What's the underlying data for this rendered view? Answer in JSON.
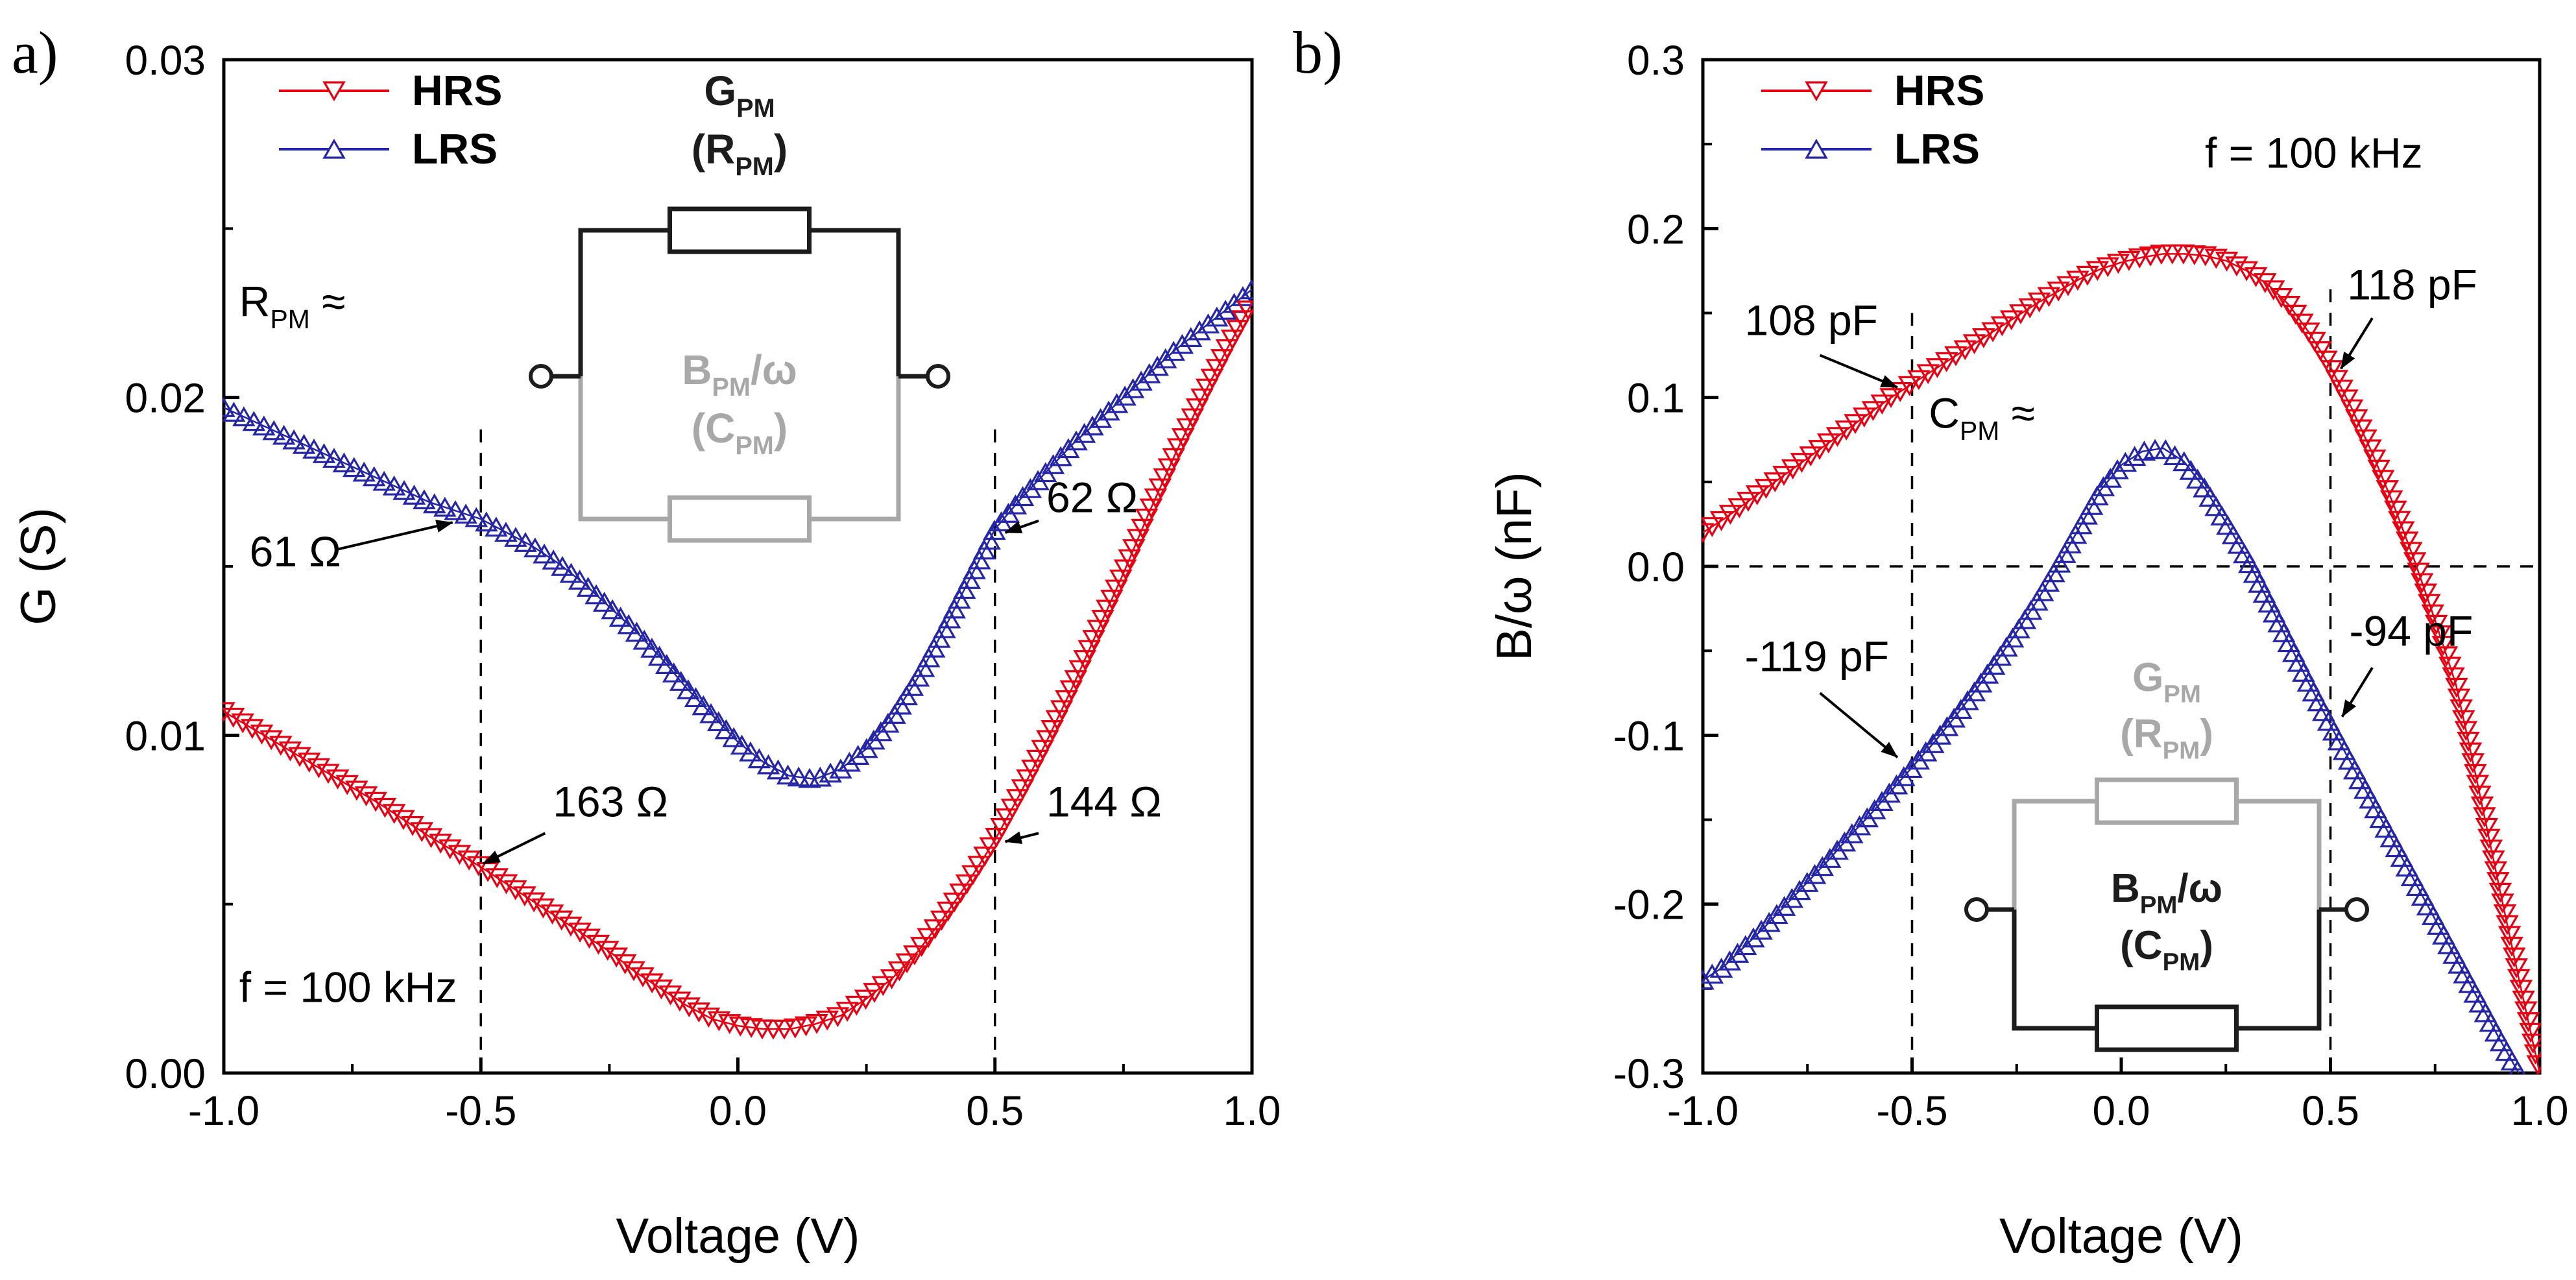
{
  "figure_background": "#ffffff",
  "chart_data": [
    {
      "id": "a",
      "panel_label": "a)",
      "type": "scatter",
      "xlabel": "Voltage (V)",
      "ylabel": "G (S)",
      "xlim": [
        -1.0,
        1.0
      ],
      "ylim": [
        0.0,
        0.03
      ],
      "xticks": [
        -1.0,
        -0.5,
        0.0,
        0.5,
        1.0
      ],
      "xtick_labels": [
        "-1.0",
        "-0.5",
        "0.0",
        "0.5",
        "1.0"
      ],
      "yticks": [
        0.0,
        0.01,
        0.02,
        0.03
      ],
      "ytick_labels": [
        "0.00",
        "0.01",
        "0.02",
        "0.03"
      ],
      "grid": false,
      "legend_position": "top-left",
      "legend": [
        {
          "label": "HRS",
          "marker": "down",
          "color": "#e60012"
        },
        {
          "label": "LRS",
          "marker": "up",
          "color": "#2525a8"
        }
      ],
      "series": [
        {
          "name": "LRS",
          "color": "#2525a8",
          "marker": "up",
          "points": [
            [
              -1.0,
              0.0197
            ],
            [
              -0.95,
              0.01935
            ],
            [
              -0.9,
              0.019
            ],
            [
              -0.85,
              0.01865
            ],
            [
              -0.8,
              0.0183
            ],
            [
              -0.75,
              0.01795
            ],
            [
              -0.7,
              0.0176
            ],
            [
              -0.65,
              0.01725
            ],
            [
              -0.6,
              0.0169
            ],
            [
              -0.55,
              0.01665
            ],
            [
              -0.5,
              0.0164
            ],
            [
              -0.45,
              0.016
            ],
            [
              -0.4,
              0.0156
            ],
            [
              -0.35,
              0.0151
            ],
            [
              -0.3,
              0.0145
            ],
            [
              -0.25,
              0.0138
            ],
            [
              -0.2,
              0.0131
            ],
            [
              -0.15,
              0.0123
            ],
            [
              -0.1,
              0.0114
            ],
            [
              -0.05,
              0.0106
            ],
            [
              0.0,
              0.0098
            ],
            [
              0.05,
              0.0092
            ],
            [
              0.1,
              0.0088
            ],
            [
              0.15,
              0.0087
            ],
            [
              0.2,
              0.009
            ],
            [
              0.25,
              0.0096
            ],
            [
              0.3,
              0.0105
            ],
            [
              0.35,
              0.0117
            ],
            [
              0.4,
              0.0131
            ],
            [
              0.45,
              0.0146
            ],
            [
              0.5,
              0.0161
            ],
            [
              0.55,
              0.017
            ],
            [
              0.6,
              0.0178
            ],
            [
              0.65,
              0.0186
            ],
            [
              0.7,
              0.0193
            ],
            [
              0.75,
              0.02
            ],
            [
              0.8,
              0.0207
            ],
            [
              0.85,
              0.0214
            ],
            [
              0.9,
              0.022
            ],
            [
              0.95,
              0.0226
            ],
            [
              1.0,
              0.0232
            ]
          ]
        },
        {
          "name": "HRS",
          "color": "#e60012",
          "marker": "down",
          "points": [
            [
              -1.0,
              0.0107
            ],
            [
              -0.95,
              0.01025
            ],
            [
              -0.9,
              0.0098
            ],
            [
              -0.85,
              0.00935
            ],
            [
              -0.8,
              0.0089
            ],
            [
              -0.75,
              0.00845
            ],
            [
              -0.7,
              0.008
            ],
            [
              -0.65,
              0.0075
            ],
            [
              -0.6,
              0.007
            ],
            [
              -0.55,
              0.00655
            ],
            [
              -0.5,
              0.0061
            ],
            [
              -0.45,
              0.0056
            ],
            [
              -0.4,
              0.0051
            ],
            [
              -0.35,
              0.0046
            ],
            [
              -0.3,
              0.0041
            ],
            [
              -0.25,
              0.0036
            ],
            [
              -0.2,
              0.003
            ],
            [
              -0.15,
              0.0025
            ],
            [
              -0.1,
              0.002
            ],
            [
              -0.05,
              0.0016
            ],
            [
              0.0,
              0.0014
            ],
            [
              0.05,
              0.0013
            ],
            [
              0.1,
              0.0013
            ],
            [
              0.15,
              0.00145
            ],
            [
              0.2,
              0.0017
            ],
            [
              0.25,
              0.0022
            ],
            [
              0.3,
              0.0028
            ],
            [
              0.35,
              0.0036
            ],
            [
              0.4,
              0.0046
            ],
            [
              0.45,
              0.0057
            ],
            [
              0.5,
              0.0069
            ],
            [
              0.55,
              0.0083
            ],
            [
              0.6,
              0.0098
            ],
            [
              0.65,
              0.0114
            ],
            [
              0.7,
              0.0131
            ],
            [
              0.75,
              0.0148
            ],
            [
              0.8,
              0.0166
            ],
            [
              0.85,
              0.0183
            ],
            [
              0.9,
              0.0199
            ],
            [
              0.95,
              0.0214
            ],
            [
              1.0,
              0.0228
            ]
          ]
        }
      ],
      "vlines": [
        {
          "x": -0.5,
          "y1": 0.0,
          "y2": 0.0192
        },
        {
          "x": 0.5,
          "y1": 0.0,
          "y2": 0.0192
        }
      ],
      "hlines": [],
      "annotations": [
        {
          "text": "R_{PM} ≈",
          "x": -0.97,
          "y": 0.0224,
          "size": 66
        },
        {
          "text": "61 Ω",
          "x": -0.95,
          "y": 0.015,
          "size": 66,
          "arrow": {
            "x1": -0.78,
            "y1": 0.0155,
            "x2": -0.555,
            "y2": 0.0163
          }
        },
        {
          "text": "163 Ω",
          "x": -0.36,
          "y": 0.0076,
          "size": 66,
          "arrow": {
            "x1": -0.375,
            "y1": 0.0071,
            "x2": -0.495,
            "y2": 0.0062
          }
        },
        {
          "text": "62 Ω",
          "x": 0.6,
          "y": 0.0166,
          "size": 66,
          "arrow": {
            "x1": 0.585,
            "y1": 0.01635,
            "x2": 0.52,
            "y2": 0.016
          }
        },
        {
          "text": "144 Ω",
          "x": 0.6,
          "y": 0.0076,
          "size": 66,
          "arrow": {
            "x1": 0.585,
            "y1": 0.0071,
            "x2": 0.52,
            "y2": 0.00685
          }
        },
        {
          "text": "f = 100 kHz",
          "x": -0.97,
          "y": 0.0021,
          "size": 66
        }
      ],
      "inset": {
        "labels_top": [
          "G_{PM}",
          "(R_{PM})"
        ],
        "labels_mid": [
          "B_{PM}/ω",
          "(C_{PM})"
        ],
        "top_color": "#1c1c1c",
        "bottom_color": "#a8a8a8"
      }
    },
    {
      "id": "b",
      "panel_label": "b)",
      "type": "scatter",
      "xlabel": "Voltage (V)",
      "ylabel": "B/ω (nF)",
      "xlim": [
        -1.0,
        1.0
      ],
      "ylim": [
        -0.3,
        0.3
      ],
      "xticks": [
        -1.0,
        -0.5,
        0.0,
        0.5,
        1.0
      ],
      "xtick_labels": [
        "-1.0",
        "-0.5",
        "0.0",
        "0.5",
        "1.0"
      ],
      "yticks": [
        -0.3,
        -0.2,
        -0.1,
        0.0,
        0.1,
        0.2,
        0.3
      ],
      "ytick_labels": [
        "-0.3",
        "-0.2",
        "-0.1",
        "0.0",
        "0.1",
        "0.2",
        "0.3"
      ],
      "grid": false,
      "legend_position": "top-left",
      "legend": [
        {
          "label": "HRS",
          "marker": "down",
          "color": "#e60012"
        },
        {
          "label": "LRS",
          "marker": "up",
          "color": "#2525a8"
        }
      ],
      "series": [
        {
          "name": "LRS",
          "color": "#2525a8",
          "marker": "up",
          "points": [
            [
              -1.0,
              -0.245
            ],
            [
              -0.95,
              -0.237
            ],
            [
              -0.9,
              -0.225
            ],
            [
              -0.85,
              -0.213
            ],
            [
              -0.8,
              -0.2
            ],
            [
              -0.75,
              -0.187
            ],
            [
              -0.7,
              -0.174
            ],
            [
              -0.65,
              -0.16
            ],
            [
              -0.6,
              -0.147
            ],
            [
              -0.55,
              -0.133
            ],
            [
              -0.5,
              -0.119
            ],
            [
              -0.45,
              -0.105
            ],
            [
              -0.4,
              -0.09
            ],
            [
              -0.35,
              -0.074
            ],
            [
              -0.3,
              -0.057
            ],
            [
              -0.25,
              -0.039
            ],
            [
              -0.2,
              -0.02
            ],
            [
              -0.15,
              0.001
            ],
            [
              -0.1,
              0.023
            ],
            [
              -0.05,
              0.045
            ],
            [
              0.0,
              0.06
            ],
            [
              0.05,
              0.068
            ],
            [
              0.1,
              0.07
            ],
            [
              0.15,
              0.062
            ],
            [
              0.2,
              0.046
            ],
            [
              0.25,
              0.026
            ],
            [
              0.3,
              0.005
            ],
            [
              0.35,
              -0.02
            ],
            [
              0.4,
              -0.045
            ],
            [
              0.45,
              -0.07
            ],
            [
              0.5,
              -0.094
            ],
            [
              0.55,
              -0.117
            ],
            [
              0.6,
              -0.14
            ],
            [
              0.65,
              -0.163
            ],
            [
              0.7,
              -0.186
            ],
            [
              0.75,
              -0.209
            ],
            [
              0.8,
              -0.232
            ],
            [
              0.85,
              -0.255
            ],
            [
              0.9,
              -0.278
            ],
            [
              0.95,
              -0.3
            ]
          ]
        },
        {
          "name": "HRS",
          "color": "#e60012",
          "marker": "down",
          "points": [
            [
              -1.0,
              0.02
            ],
            [
              -0.95,
              0.028
            ],
            [
              -0.9,
              0.037
            ],
            [
              -0.85,
              0.046
            ],
            [
              -0.8,
              0.055
            ],
            [
              -0.75,
              0.064
            ],
            [
              -0.7,
              0.073
            ],
            [
              -0.65,
              0.082
            ],
            [
              -0.6,
              0.091
            ],
            [
              -0.55,
              0.1
            ],
            [
              -0.5,
              0.108
            ],
            [
              -0.45,
              0.116
            ],
            [
              -0.4,
              0.124
            ],
            [
              -0.35,
              0.132
            ],
            [
              -0.3,
              0.14
            ],
            [
              -0.25,
              0.148
            ],
            [
              -0.2,
              0.156
            ],
            [
              -0.15,
              0.163
            ],
            [
              -0.1,
              0.17
            ],
            [
              -0.05,
              0.176
            ],
            [
              0.0,
              0.18
            ],
            [
              0.05,
              0.183
            ],
            [
              0.1,
              0.185
            ],
            [
              0.15,
              0.185
            ],
            [
              0.2,
              0.184
            ],
            [
              0.25,
              0.181
            ],
            [
              0.3,
              0.175
            ],
            [
              0.35,
              0.167
            ],
            [
              0.4,
              0.155
            ],
            [
              0.45,
              0.138
            ],
            [
              0.5,
              0.118
            ],
            [
              0.55,
              0.094
            ],
            [
              0.6,
              0.067
            ],
            [
              0.65,
              0.037
            ],
            [
              0.7,
              0.004
            ],
            [
              0.75,
              -0.032
            ],
            [
              0.8,
              -0.07
            ],
            [
              0.85,
              -0.127
            ],
            [
              0.9,
              -0.186
            ],
            [
              0.95,
              -0.244
            ],
            [
              1.0,
              -0.3
            ]
          ]
        }
      ],
      "vlines": [
        {
          "x": -0.5,
          "y1": -0.3,
          "y2": 0.15
        },
        {
          "x": 0.5,
          "y1": -0.3,
          "y2": 0.165
        }
      ],
      "hlines": [
        {
          "y": 0.0,
          "x1": -1.0,
          "x2": 1.0
        }
      ],
      "annotations": [
        {
          "text": "f = 100 kHz",
          "x": 0.2,
          "y": 0.236,
          "size": 66
        },
        {
          "text": "108 pF",
          "x": -0.9,
          "y": 0.137,
          "size": 66,
          "arrow": {
            "x1": -0.72,
            "y1": 0.125,
            "x2": -0.535,
            "y2": 0.106
          }
        },
        {
          "text": "118 pF",
          "x": 0.54,
          "y": 0.158,
          "size": 66,
          "arrow": {
            "x1": 0.6,
            "y1": 0.147,
            "x2": 0.525,
            "y2": 0.117
          }
        },
        {
          "text": "C_{PM} ≈",
          "x": -0.46,
          "y": 0.082,
          "size": 66
        },
        {
          "text": "-119 pF",
          "x": -0.9,
          "y": -0.062,
          "size": 66,
          "arrow": {
            "x1": -0.72,
            "y1": -0.075,
            "x2": -0.535,
            "y2": -0.113
          }
        },
        {
          "text": "-94 pF",
          "x": 0.545,
          "y": -0.047,
          "size": 66,
          "arrow": {
            "x1": 0.6,
            "y1": -0.06,
            "x2": 0.528,
            "y2": -0.089
          }
        }
      ],
      "inset": {
        "labels_top": [
          "G_{PM}",
          "(R_{PM})"
        ],
        "labels_mid": [
          "B_{PM}/ω",
          "(C_{PM})"
        ],
        "top_color": "#a8a8a8",
        "bottom_color": "#1c1c1c"
      }
    }
  ]
}
